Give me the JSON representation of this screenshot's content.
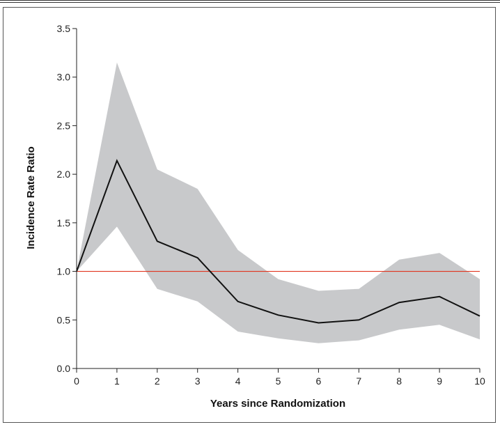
{
  "chart_data": {
    "type": "line",
    "xlabel": "Years since Randomization",
    "ylabel": "Incidence Rate Ratio",
    "xlim": [
      0,
      10
    ],
    "ylim": [
      0,
      3.5
    ],
    "x_ticks": [
      "0",
      "1",
      "2",
      "3",
      "4",
      "5",
      "6",
      "7",
      "8",
      "9",
      "10"
    ],
    "y_ticks": [
      "0.0",
      "0.5",
      "1.0",
      "1.5",
      "2.0",
      "2.5",
      "3.0",
      "3.5"
    ],
    "x": [
      0,
      1,
      2,
      3,
      4,
      5,
      6,
      7,
      8,
      9,
      10
    ],
    "series": [
      {
        "values": [
          1.0,
          2.14,
          1.31,
          1.14,
          0.69,
          0.55,
          0.47,
          0.5,
          0.68,
          0.74,
          0.54
        ]
      }
    ],
    "confidence_band": {
      "lower": [
        1.0,
        1.46,
        0.82,
        0.69,
        0.38,
        0.31,
        0.26,
        0.29,
        0.4,
        0.45,
        0.3
      ],
      "upper": [
        1.0,
        3.15,
        2.05,
        1.85,
        1.22,
        0.92,
        0.8,
        0.82,
        1.12,
        1.19,
        0.92
      ]
    },
    "reference_line": 1.0,
    "grid": false,
    "colors": {
      "line": "#111111",
      "band": "#c8c9cb",
      "reference": "#e0341f",
      "axis": "#222222"
    }
  }
}
